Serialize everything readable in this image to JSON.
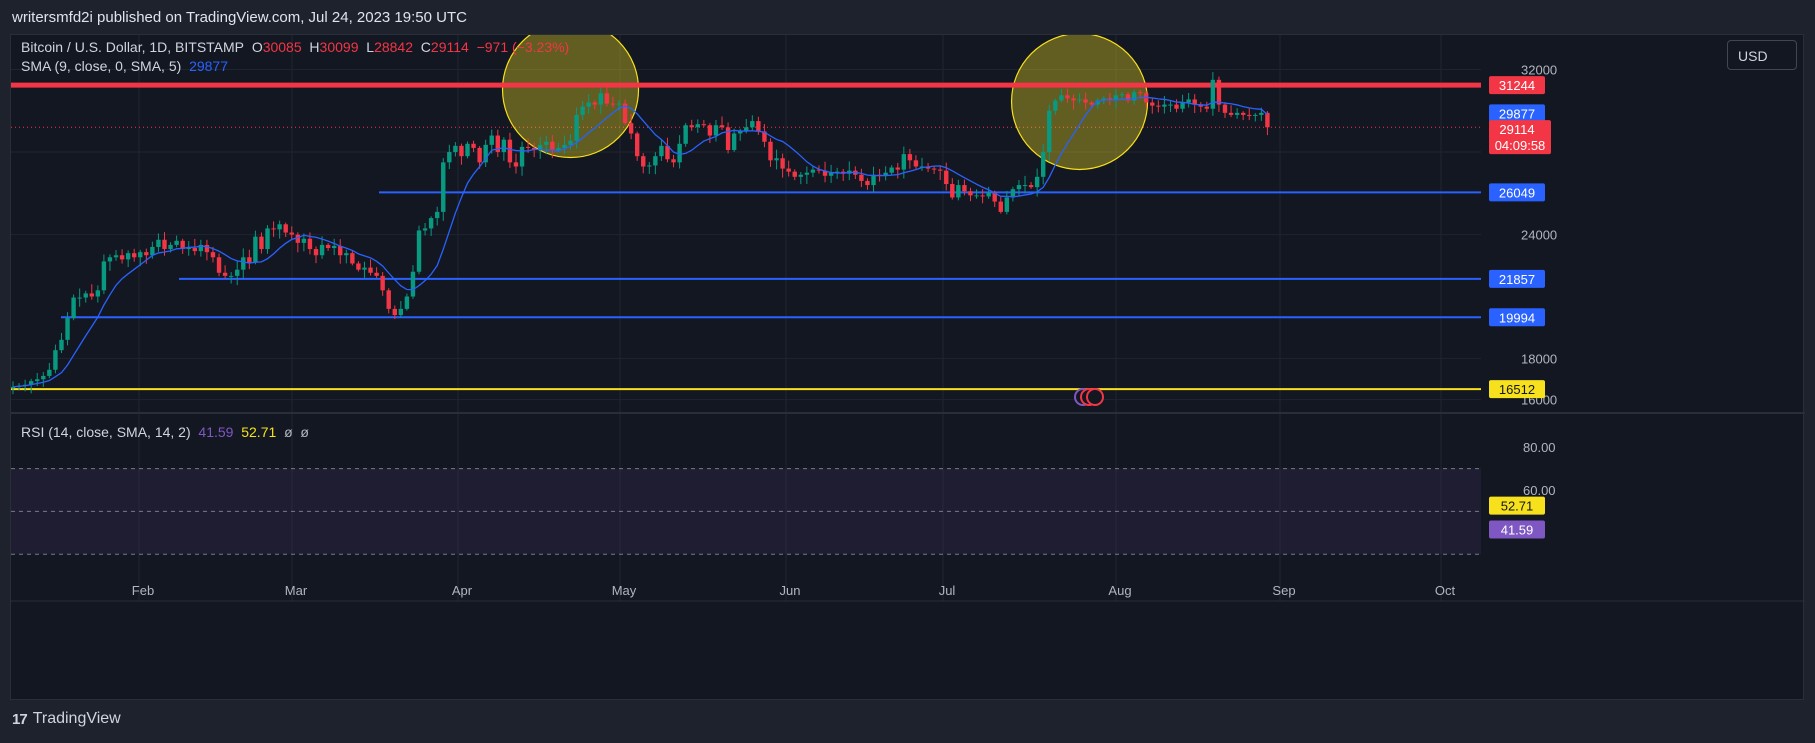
{
  "header": {
    "published_line": "writersmfd2i published on TradingView.com, Jul 24, 2023 19:50 UTC"
  },
  "legend": {
    "symbol": "Bitcoin / U.S. Dollar, 1D, BITSTAMP",
    "o_label": "O",
    "o_value": "30085",
    "h_label": "H",
    "h_value": "30099",
    "l_label": "L",
    "l_value": "28842",
    "c_label": "C",
    "c_value": "29114",
    "change": "−971 (−3.23%)",
    "sma_label": "SMA (9, close, 0, SMA, 5)",
    "sma_value": "29877"
  },
  "rsi_legend": {
    "label": "RSI (14, close, SMA, 14, 2)",
    "rsi_value": "41.59",
    "ma_value": "52.71",
    "extra1": "ø",
    "extra2": "ø"
  },
  "currency_button": "USD",
  "footer": {
    "brand": "TradingView",
    "logo": "17"
  },
  "colors": {
    "up": "#089981",
    "down": "#f23645",
    "sma": "#2962ff",
    "resistance": "#f23645",
    "support": "#2962ff",
    "floor": "#f7e01c",
    "rsi": "#7e57c2",
    "rsi_ma": "#f7e01c",
    "highlight_circle": "#f7e01c"
  },
  "chart_data": {
    "type": "candlestick",
    "symbol": "BTCUSD",
    "timeframe": "1D",
    "x_ticks": [
      "Feb",
      "Mar",
      "Apr",
      "May",
      "Jun",
      "Jul",
      "Aug",
      "Sep",
      "Oct"
    ],
    "price_axis_ticks": [
      "32000",
      "24000",
      "18000",
      "16000"
    ],
    "price_range": [
      15500,
      32800
    ],
    "horizontal_levels": [
      {
        "value": 31244,
        "label": "31244",
        "color": "#f23645",
        "kind": "resistance"
      },
      {
        "value": 26049,
        "label": "26049",
        "color": "#2962ff",
        "kind": "support"
      },
      {
        "value": 21857,
        "label": "21857",
        "color": "#2962ff",
        "kind": "support"
      },
      {
        "value": 19994,
        "label": "19994",
        "color": "#2962ff",
        "kind": "support"
      },
      {
        "value": 16512,
        "label": "16512",
        "color": "#f7e01c",
        "kind": "support"
      }
    ],
    "price_labels": [
      {
        "value": 29877,
        "label": "29877",
        "color": "#2962ff"
      },
      {
        "value": 29114,
        "label": "29114",
        "sub": "04:09:58",
        "color": "#f23645"
      }
    ],
    "highlight_circles": [
      {
        "center_day": 92,
        "center_price": 31030
      },
      {
        "center_day": 176,
        "center_price": 30450
      }
    ],
    "close": [
      16620,
      16680,
      16720,
      16900,
      16990,
      17150,
      17450,
      18400,
      18900,
      19950,
      20950,
      20950,
      21150,
      21000,
      21300,
      22700,
      22900,
      23000,
      22800,
      23100,
      22900,
      23150,
      23000,
      23400,
      23750,
      23300,
      23500,
      23700,
      23300,
      23350,
      23200,
      23500,
      23150,
      22900,
      22150,
      22000,
      22000,
      22300,
      22900,
      22650,
      23900,
      23300,
      24300,
      24250,
      24500,
      24100,
      24000,
      23600,
      23800,
      23300,
      23000,
      23500,
      23350,
      23450,
      23000,
      23100,
      22600,
      22300,
      22400,
      22150,
      22000,
      21300,
      20400,
      20100,
      20400,
      21000,
      22200,
      24200,
      24300,
      24800,
      25100,
      27500,
      28000,
      28300,
      27800,
      28400,
      28200,
      27500,
      28350,
      28800,
      28000,
      28600,
      27500,
      27300,
      28250,
      28200,
      28100,
      28350,
      28500,
      28100,
      28200,
      28350,
      28550,
      29800,
      30200,
      30400,
      30300,
      30850,
      30350,
      30300,
      30350,
      29400,
      28900,
      27800,
      27300,
      27350,
      27800,
      28300,
      27650,
      27500,
      28400,
      29300,
      29200,
      29350,
      29300,
      28800,
      29300,
      29200,
      28100,
      28900,
      29000,
      29200,
      29500,
      29000,
      28500,
      27600,
      27700,
      27200,
      27050,
      26800,
      26900,
      27000,
      27150,
      27100,
      26850,
      27000,
      27050,
      26950,
      27100,
      26900,
      26600,
      26400,
      26900,
      26850,
      27000,
      27250,
      27150,
      27900,
      27600,
      27300,
      27300,
      27200,
      27150,
      27100,
      26450,
      25800,
      26400,
      26100,
      25900,
      25900,
      25850,
      26050,
      25600,
      25100,
      25800,
      26200,
      26400,
      26400,
      26300,
      26800,
      28000,
      30000,
      30500,
      30750,
      30600,
      30500,
      30550,
      30400,
      30300,
      30500,
      30600,
      30550,
      30750,
      30800,
      30500,
      30900,
      30850,
      30400,
      30250,
      30200,
      30300,
      30300,
      30100,
      30400,
      30550,
      30300,
      30200,
      30100,
      31500,
      30300,
      29900,
      29800,
      29900,
      29800,
      29750,
      29800,
      29900,
      29200
    ],
    "sma_period": 9,
    "rsi": {
      "levels": [
        70,
        50,
        30
      ],
      "axis_ticks": [
        "80.00",
        "60.00"
      ],
      "range": [
        18,
        95
      ],
      "rsi_last": 41.59,
      "ma_last": 52.71
    }
  }
}
